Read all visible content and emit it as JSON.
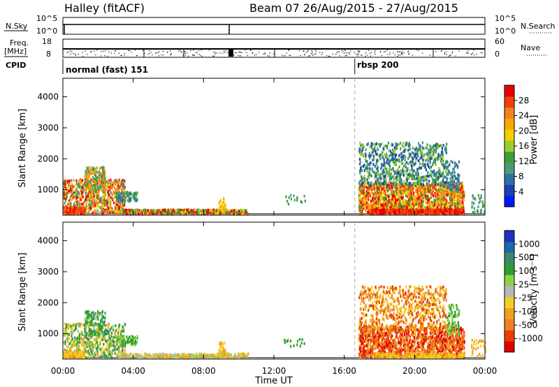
{
  "header": {
    "station": "Halley (fitACF)",
    "beam_info": "Beam 07 26/Aug/2015 - 27/Aug/2015"
  },
  "strip": {
    "nsky_label": "N.Sky",
    "nsky_top": "10^5",
    "nsky_bottom": "10^0",
    "nsearch_label": "N.Search",
    "nsearch_top": "10^5",
    "nsearch_bottom": "10^0",
    "freq_label": "Freq.",
    "freq_unit": "[MHz]",
    "freq_top": "18",
    "freq_bottom": "8",
    "nave_label": "Nave",
    "nave_top": "60",
    "nave_bottom": "0",
    "cpid_label": "CPID",
    "cpid_modes": [
      {
        "label": "normal (fast) 151",
        "start_hour": 0
      },
      {
        "label": "rbsp 200",
        "start_hour": 16.6
      }
    ]
  },
  "colors": {
    "power_scale": [
      "#0018f8",
      "#1a3fb0",
      "#2f6ea8",
      "#4d9a78",
      "#3c9e3a",
      "#9acd32",
      "#f0d000",
      "#f7a800",
      "#f58020",
      "#f04010",
      "#e80000"
    ],
    "velocity_scale": [
      "#2030c0",
      "#1e68a8",
      "#3a8a6a",
      "#2e9e30",
      "#8fd14a",
      "#b8b8b8",
      "#f0d020",
      "#f0a020",
      "#f08020",
      "#e84000",
      "#e00000"
    ]
  },
  "chart_data": [
    {
      "type": "heatmap",
      "name": "power",
      "x_ticks": [
        "00:00",
        "04:00",
        "08:00",
        "12:00",
        "16:00",
        "20:00",
        "00:00"
      ],
      "xlim_hours": [
        0,
        24
      ],
      "ylabel": "Slant Range [km]",
      "y_ticks": [
        1000,
        2000,
        3000,
        4000
      ],
      "ylim_km": [
        180,
        4600
      ],
      "colorbar_label": "Power [dB]",
      "colorbar_ticks": [
        "4",
        "8",
        "12",
        "16",
        "20",
        "24",
        "28"
      ],
      "marker_hour": 16.6
    },
    {
      "type": "heatmap",
      "name": "velocity",
      "x_ticks": [
        "00:00",
        "04:00",
        "08:00",
        "12:00",
        "16:00",
        "20:00",
        "00:00"
      ],
      "xlim_hours": [
        0,
        24
      ],
      "ylabel": "Slant Range [km]",
      "xlabel": "Time UT",
      "y_ticks": [
        1000,
        2000,
        3000,
        4000
      ],
      "ylim_km": [
        180,
        4600
      ],
      "colorbar_label": "Velocity [m s⁻¹]",
      "colorbar_ticks": [
        "1000",
        "500",
        "100",
        "25",
        "-25",
        "-100",
        "-500",
        "-1000"
      ],
      "marker_hour": 16.6
    }
  ]
}
